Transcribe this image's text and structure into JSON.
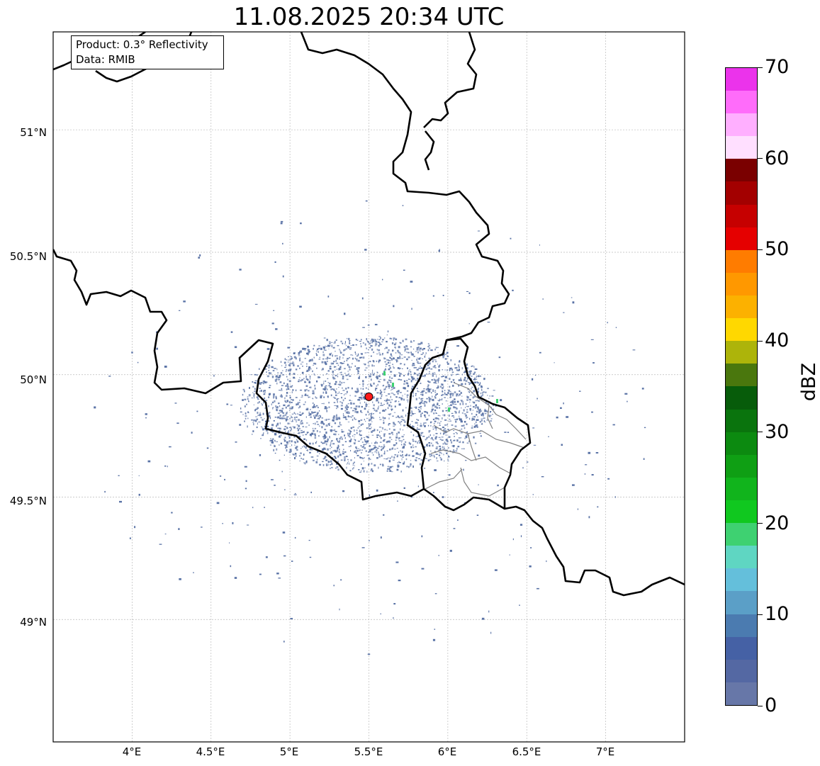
{
  "title": "11.08.2025 20:34 UTC",
  "info": {
    "product": "Product: 0.3° Reflectivity",
    "data": "Data: RMIB"
  },
  "lat_labels": [
    "51°N",
    "50.5°N",
    "50°N",
    "49.5°N",
    "49°N"
  ],
  "lon_labels": [
    "4°E",
    "4.5°E",
    "5°E",
    "5.5°E",
    "6°E",
    "6.5°E",
    "7°E"
  ],
  "colorbar": {
    "label": "dBZ",
    "ticks": [
      "0",
      "10",
      "20",
      "30",
      "40",
      "50",
      "60",
      "70"
    ],
    "colors": [
      "#6777a8",
      "#5468a3",
      "#4561a5",
      "#4b7bb0",
      "#5b9fc7",
      "#64bfdb",
      "#5fd6c2",
      "#3ed171",
      "#10c81f",
      "#11b41c",
      "#0f9f14",
      "#0c8a10",
      "#0a740d",
      "#075c0a",
      "#4a770d",
      "#adb40a",
      "#ffd800",
      "#fcb100",
      "#ff9800",
      "#ff7c00",
      "#e50000",
      "#c60000",
      "#a30000",
      "#7a0000",
      "#ffdfff",
      "#ffafff",
      "#ff6cfa",
      "#eb33eb"
    ]
  },
  "map": {
    "lon_range": [
      3.5,
      7.5
    ],
    "lat_range": [
      48.5,
      51.4
    ],
    "radar_site": {
      "lon": 5.5,
      "lat": 49.91,
      "color": "#ff1a1a"
    },
    "echo_color": "#5a73a6",
    "echo_highlight_color": "#3ed171",
    "border_color": "#000000",
    "admin_border_color": "#808080"
  }
}
